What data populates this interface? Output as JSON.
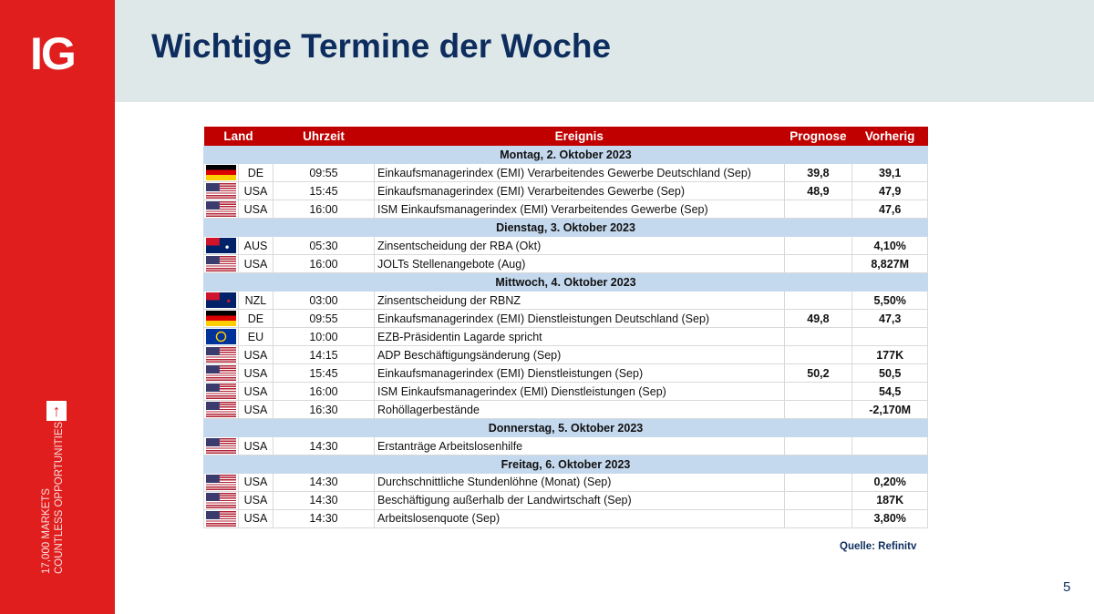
{
  "logo": "IG",
  "sidebar": {
    "tagline1": "17,000 MARKETS",
    "tagline2": "COUNTLESS OPPORTUNITIES",
    "arrow_icon": "arrow-up-icon"
  },
  "title": "Wichtige Termine der Woche",
  "table": {
    "headers": [
      "Land",
      "Uhrzeit",
      "Ereignis",
      "Prognose",
      "Vorherig"
    ],
    "rows": [
      {
        "day": "Montag, 2. Oktober 2023"
      },
      {
        "flag": "de",
        "land": "DE",
        "time": "09:55",
        "event": "Einkaufsmanagerindex (EMI) Verarbeitendes Gewerbe Deutschland (Sep)",
        "prognose": "39,8",
        "vorherig": "39,1"
      },
      {
        "flag": "us",
        "land": "USA",
        "time": "15:45",
        "event": "Einkaufsmanagerindex (EMI) Verarbeitendes Gewerbe (Sep)",
        "prognose": "48,9",
        "vorherig": "47,9"
      },
      {
        "flag": "us",
        "land": "USA",
        "time": "16:00",
        "event": "ISM Einkaufsmanagerindex (EMI) Verarbeitendes Gewerbe (Sep)",
        "prognose": "",
        "vorherig": "47,6"
      },
      {
        "day": "Dienstag, 3. Oktober 2023"
      },
      {
        "flag": "au",
        "land": "AUS",
        "time": "05:30",
        "event": "Zinsentscheidung der RBA (Okt)",
        "prognose": "",
        "vorherig": "4,10%"
      },
      {
        "flag": "us",
        "land": "USA",
        "time": "16:00",
        "event": "JOLTs Stellenangebote (Aug)",
        "prognose": "",
        "vorherig": "8,827M"
      },
      {
        "day": "Mittwoch, 4. Oktober 2023"
      },
      {
        "flag": "nz",
        "land": "NZL",
        "time": "03:00",
        "event": "Zinsentscheidung der RBNZ",
        "prognose": "",
        "vorherig": "5,50%"
      },
      {
        "flag": "de",
        "land": "DE",
        "time": "09:55",
        "event": "Einkaufsmanagerindex (EMI) Dienstleistungen Deutschland (Sep)",
        "prognose": "49,8",
        "vorherig": "47,3"
      },
      {
        "flag": "eu",
        "land": "EU",
        "time": "10:00",
        "event": "EZB-Präsidentin Lagarde spricht",
        "prognose": "",
        "vorherig": ""
      },
      {
        "flag": "us",
        "land": "USA",
        "time": "14:15",
        "event": "ADP Beschäftigungsänderung (Sep)",
        "prognose": "",
        "vorherig": "177K"
      },
      {
        "flag": "us",
        "land": "USA",
        "time": "15:45",
        "event": "Einkaufsmanagerindex (EMI) Dienstleistungen (Sep)",
        "prognose": "50,2",
        "vorherig": "50,5"
      },
      {
        "flag": "us",
        "land": "USA",
        "time": "16:00",
        "event": "ISM Einkaufsmanagerindex (EMI) Dienstleistungen (Sep)",
        "prognose": "",
        "vorherig": "54,5"
      },
      {
        "flag": "us",
        "land": "USA",
        "time": "16:30",
        "event": "Rohöllagerbestände",
        "prognose": "",
        "vorherig": "-2,170M"
      },
      {
        "day": "Donnerstag, 5. Oktober 2023"
      },
      {
        "flag": "us",
        "land": "USA",
        "time": "14:30",
        "event": "Erstanträge Arbeitslosenhilfe",
        "prognose": "",
        "vorherig": ""
      },
      {
        "day": "Freitag, 6. Oktober 2023"
      },
      {
        "flag": "us",
        "land": "USA",
        "time": "14:30",
        "event": "Durchschnittliche Stundenlöhne (Monat) (Sep)",
        "prognose": "",
        "vorherig": "0,20%"
      },
      {
        "flag": "us",
        "land": "USA",
        "time": "14:30",
        "event": "Beschäftigung außerhalb der Landwirtschaft (Sep)",
        "prognose": "",
        "vorherig": "187K"
      },
      {
        "flag": "us",
        "land": "USA",
        "time": "14:30",
        "event": "Arbeitslosenquote (Sep)",
        "prognose": "",
        "vorherig": "3,80%"
      }
    ]
  },
  "source": "Quelle: Refinitv",
  "page_number": "5"
}
